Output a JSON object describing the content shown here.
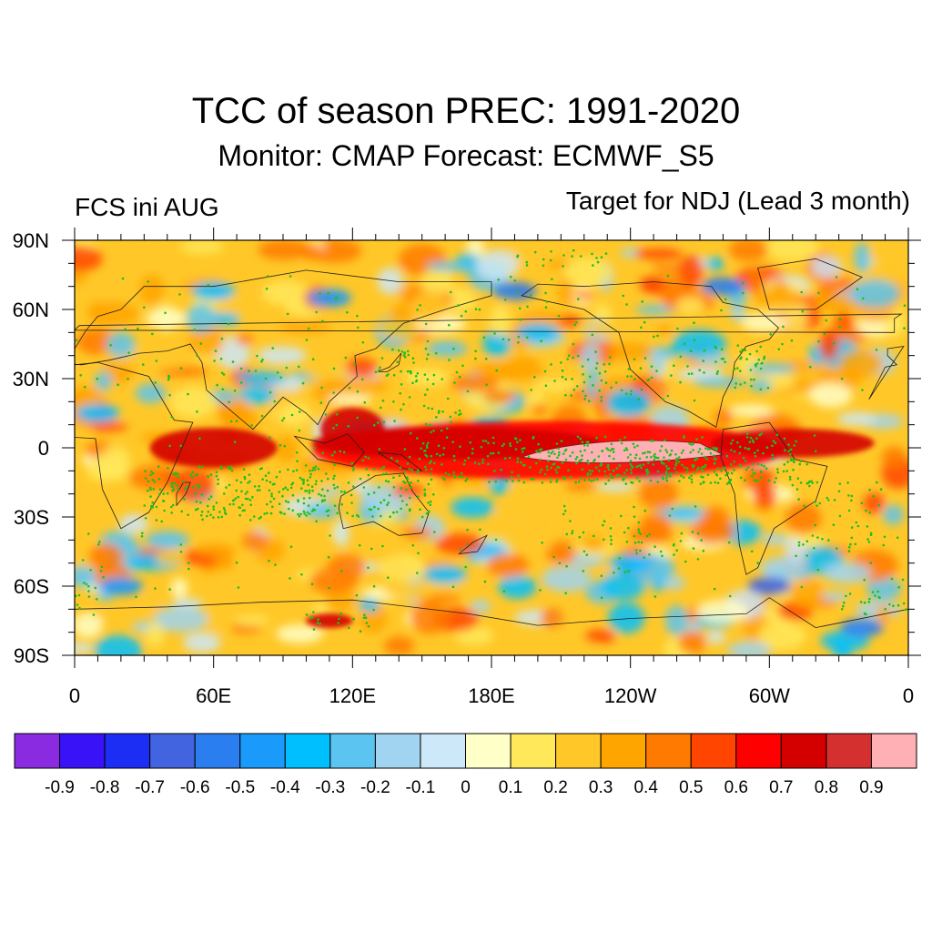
{
  "title": "TCC of season PREC: 1991-2020",
  "subtitle": "Monitor: CMAP   Forecast: ECMWF_S5",
  "left_label": "FCS ini AUG",
  "right_label": "Target for NDJ (Lead 3 month)",
  "map": {
    "projection": "cylindrical equidistant",
    "lon_range": [
      0,
      360
    ],
    "lat_range": [
      -90,
      90
    ],
    "lat_ticks": [
      "90N",
      "60N",
      "30N",
      "0",
      "30S",
      "60S",
      "90S"
    ],
    "lon_ticks": [
      "0",
      "60E",
      "120E",
      "180E",
      "120W",
      "60W",
      "0"
    ],
    "stippling": "green dots mark significant correlation"
  },
  "colorbar": {
    "colors": [
      "#8a2be2",
      "#3a12f8",
      "#1c2ef3",
      "#4264e0",
      "#2a7ef0",
      "#1a9afa",
      "#00bfff",
      "#5cc4f0",
      "#a0d4f0",
      "#cde8f8",
      "#ffffc8",
      "#ffe85a",
      "#ffc828",
      "#ffa500",
      "#ff7a00",
      "#ff4500",
      "#ff0000",
      "#d40000",
      "#d43030",
      "#ffb0b4"
    ],
    "labels": [
      "-0.9",
      "-0.8",
      "-0.7",
      "-0.6",
      "-0.5",
      "-0.4",
      "-0.3",
      "-0.2",
      "-0.1",
      "0",
      "0.1",
      "0.2",
      "0.3",
      "0.4",
      "0.5",
      "0.6",
      "0.7",
      "0.8",
      "0.9"
    ]
  }
}
